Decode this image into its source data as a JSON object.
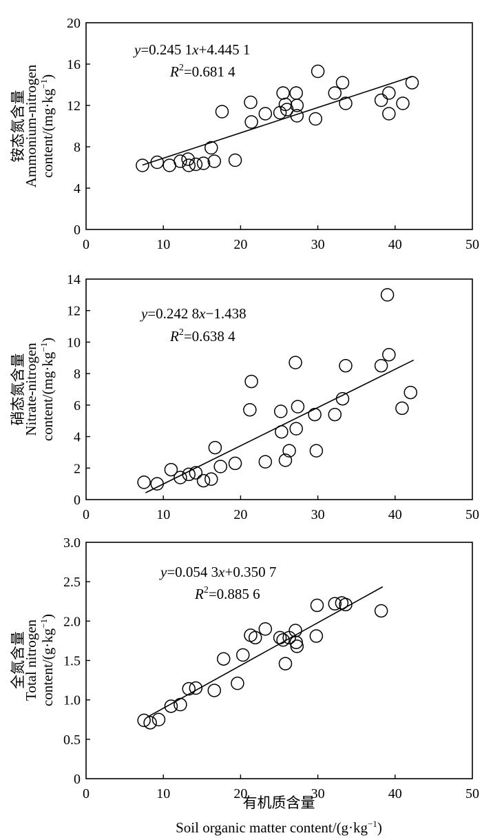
{
  "figure": {
    "xlabel_cn": "有机质含量",
    "xlabel_en": "Soil organic matter content/(g·kg",
    "xlabel_en_sup": "−1",
    "xlabel_en_close": ")"
  },
  "chart_data": [
    {
      "type": "scatter",
      "ylabel_cn": "铵态氮含量",
      "ylabel_en_1": "Ammonium-nitrogen",
      "ylabel_en_2a": "content/(mg·kg",
      "ylabel_en_2sup": "−1",
      "ylabel_en_2b": ")",
      "eq_y": "y",
      "eq_mid": "=0.245 1",
      "eq_x": "x",
      "eq_end": "+4.445 1",
      "r2_r": "R",
      "r2_sup": "2",
      "r2_val": "=0.681 4",
      "xlim": [
        0,
        50
      ],
      "ylim": [
        0,
        20
      ],
      "xticks": [
        "0",
        "10",
        "20",
        "30",
        "40",
        "50"
      ],
      "yticks": [
        "0",
        "4",
        "8",
        "12",
        "16",
        "20"
      ],
      "trend": {
        "slope": 0.2451,
        "intercept": 4.4451,
        "x_range": [
          7.3,
          42.2
        ]
      },
      "points": [
        [
          7.3,
          6.2
        ],
        [
          9.2,
          6.5
        ],
        [
          10.8,
          6.2
        ],
        [
          12.2,
          6.6
        ],
        [
          13.2,
          6.8
        ],
        [
          13.3,
          6.2
        ],
        [
          14.2,
          6.3
        ],
        [
          15.2,
          6.4
        ],
        [
          16.2,
          7.9
        ],
        [
          16.6,
          6.6
        ],
        [
          17.6,
          11.4
        ],
        [
          19.3,
          6.7
        ],
        [
          21.3,
          12.3
        ],
        [
          21.4,
          10.4
        ],
        [
          23.2,
          11.2
        ],
        [
          25.1,
          11.3
        ],
        [
          25.5,
          13.2
        ],
        [
          25.8,
          12.1
        ],
        [
          26.0,
          11.6
        ],
        [
          27.2,
          13.2
        ],
        [
          27.3,
          12.0
        ],
        [
          27.3,
          11.0
        ],
        [
          29.7,
          10.7
        ],
        [
          30.0,
          15.3
        ],
        [
          32.2,
          13.2
        ],
        [
          33.2,
          14.2
        ],
        [
          33.6,
          12.2
        ],
        [
          38.2,
          12.5
        ],
        [
          39.2,
          13.2
        ],
        [
          39.2,
          11.2
        ],
        [
          41.0,
          12.2
        ],
        [
          42.2,
          14.2
        ]
      ]
    },
    {
      "type": "scatter",
      "ylabel_cn": "硝态氮含量",
      "ylabel_en_1": "Nitrate-nitrogen",
      "ylabel_en_2a": "content/(mg·kg",
      "ylabel_en_2sup": "−1",
      "ylabel_en_2b": ")",
      "eq_y": "y",
      "eq_mid": "=0.242 8",
      "eq_x": "x",
      "eq_end": "−1.438",
      "r2_r": "R",
      "r2_sup": "2",
      "r2_val": "=0.638 4",
      "xlim": [
        0,
        50
      ],
      "ylim": [
        0,
        14
      ],
      "xticks": [
        "0",
        "10",
        "20",
        "30",
        "40",
        "50"
      ],
      "yticks": [
        "0",
        "2",
        "4",
        "6",
        "8",
        "10",
        "12",
        "14"
      ],
      "trend": {
        "slope": 0.2428,
        "intercept": -1.438,
        "x_range": [
          7.7,
          42.4
        ]
      },
      "points": [
        [
          7.5,
          1.1
        ],
        [
          9.2,
          1.0
        ],
        [
          11.0,
          1.9
        ],
        [
          12.2,
          1.4
        ],
        [
          13.3,
          1.6
        ],
        [
          14.2,
          1.7
        ],
        [
          15.2,
          1.2
        ],
        [
          16.2,
          1.3
        ],
        [
          16.7,
          3.3
        ],
        [
          17.4,
          2.1
        ],
        [
          19.3,
          2.3
        ],
        [
          21.2,
          5.7
        ],
        [
          21.4,
          7.5
        ],
        [
          23.2,
          2.4
        ],
        [
          25.2,
          5.6
        ],
        [
          25.3,
          4.3
        ],
        [
          25.8,
          2.5
        ],
        [
          26.3,
          3.1
        ],
        [
          27.1,
          8.7
        ],
        [
          27.2,
          4.5
        ],
        [
          27.4,
          5.9
        ],
        [
          29.6,
          5.4
        ],
        [
          29.8,
          3.1
        ],
        [
          32.2,
          5.4
        ],
        [
          33.2,
          6.4
        ],
        [
          33.6,
          8.5
        ],
        [
          38.2,
          8.5
        ],
        [
          39.0,
          13.0
        ],
        [
          39.2,
          9.2
        ],
        [
          40.9,
          5.8
        ],
        [
          42.0,
          6.8
        ]
      ]
    },
    {
      "type": "scatter",
      "ylabel_cn": "全氮含量",
      "ylabel_en_1": "Total nitrogen",
      "ylabel_en_2a": "content/(g·kg",
      "ylabel_en_2sup": "−1",
      "ylabel_en_2b": ")",
      "eq_y": "y",
      "eq_mid": "=0.054 3",
      "eq_x": "x",
      "eq_end": "+0.350 7",
      "r2_r": "R",
      "r2_sup": "2",
      "r2_val": "=0.885 6",
      "xlim": [
        0,
        50
      ],
      "ylim": [
        0,
        3.0
      ],
      "xticks": [
        "0",
        "10",
        "20",
        "30",
        "40",
        "50"
      ],
      "yticks": [
        "0",
        "0.5",
        "1.0",
        "1.5",
        "2.0",
        "2.5",
        "3.0"
      ],
      "trend": {
        "slope": 0.0543,
        "intercept": 0.3507,
        "x_range": [
          7.9,
          38.4
        ]
      },
      "points": [
        [
          7.5,
          0.74
        ],
        [
          8.3,
          0.71
        ],
        [
          9.4,
          0.75
        ],
        [
          11.0,
          0.92
        ],
        [
          12.2,
          0.94
        ],
        [
          13.3,
          1.14
        ],
        [
          14.2,
          1.15
        ],
        [
          16.6,
          1.12
        ],
        [
          17.8,
          1.52
        ],
        [
          19.6,
          1.21
        ],
        [
          20.3,
          1.57
        ],
        [
          21.3,
          1.82
        ],
        [
          21.9,
          1.79
        ],
        [
          23.2,
          1.9
        ],
        [
          25.1,
          1.79
        ],
        [
          25.5,
          1.76
        ],
        [
          25.8,
          1.46
        ],
        [
          26.3,
          1.79
        ],
        [
          27.1,
          1.88
        ],
        [
          27.2,
          1.73
        ],
        [
          27.3,
          1.68
        ],
        [
          29.8,
          1.81
        ],
        [
          29.9,
          2.2
        ],
        [
          32.2,
          2.22
        ],
        [
          33.1,
          2.23
        ],
        [
          33.6,
          2.21
        ],
        [
          38.2,
          2.13
        ]
      ]
    }
  ]
}
